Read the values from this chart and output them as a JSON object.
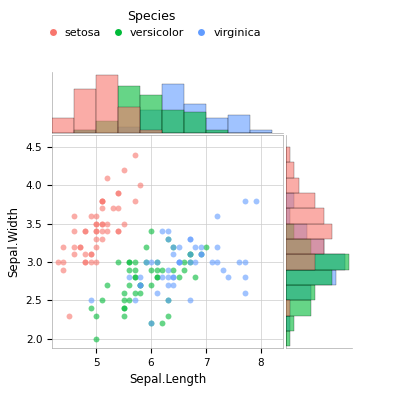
{
  "title": "Species",
  "species_colors": {
    "setosa": "#F8766D",
    "versicolor": "#00BA38",
    "virginica": "#619CFF"
  },
  "xlabel": "Sepal.Length",
  "ylabel": "Sepal.Width",
  "xlim": [
    4.2,
    8.4
  ],
  "ylim": [
    1.88,
    4.65
  ],
  "background_color": "#FFFFFF",
  "setosa_sl": [
    5.1,
    4.9,
    4.7,
    4.6,
    5.0,
    5.4,
    4.6,
    5.0,
    4.4,
    4.9,
    5.4,
    4.8,
    4.8,
    4.3,
    5.8,
    5.7,
    5.4,
    5.1,
    5.7,
    5.1,
    5.4,
    5.1,
    4.6,
    5.1,
    4.8,
    5.0,
    5.0,
    5.2,
    5.2,
    4.7,
    4.8,
    5.4,
    5.2,
    5.5,
    4.9,
    5.0,
    5.5,
    4.9,
    4.4,
    5.1,
    5.0,
    4.5,
    4.4,
    5.0,
    5.1,
    4.8,
    5.1,
    4.6,
    5.3,
    5.0
  ],
  "setosa_sw": [
    3.5,
    3.0,
    3.2,
    3.1,
    3.6,
    3.9,
    3.4,
    3.4,
    2.9,
    3.1,
    3.7,
    3.4,
    3.0,
    3.0,
    4.0,
    4.4,
    3.9,
    3.5,
    3.8,
    3.8,
    3.4,
    3.7,
    3.6,
    3.3,
    3.4,
    3.0,
    3.4,
    3.5,
    3.4,
    3.2,
    3.1,
    3.4,
    4.1,
    4.2,
    3.1,
    3.2,
    3.5,
    3.6,
    3.0,
    3.4,
    3.5,
    2.3,
    3.2,
    3.5,
    3.8,
    3.0,
    3.8,
    3.2,
    3.7,
    3.3
  ],
  "versicolor_sl": [
    7.0,
    6.4,
    6.9,
    5.5,
    6.5,
    5.7,
    6.3,
    4.9,
    6.6,
    5.2,
    5.0,
    5.9,
    6.0,
    6.1,
    5.6,
    6.7,
    5.6,
    5.8,
    6.2,
    5.6,
    5.9,
    6.1,
    6.3,
    6.1,
    6.4,
    6.6,
    6.8,
    6.7,
    6.0,
    5.7,
    5.5,
    5.5,
    5.8,
    6.0,
    5.4,
    6.0,
    6.7,
    6.3,
    5.6,
    5.5,
    5.5,
    6.1,
    5.8,
    5.0,
    5.6,
    5.7,
    5.7,
    6.2,
    5.1,
    5.7
  ],
  "versicolor_sw": [
    3.2,
    3.2,
    3.1,
    2.3,
    2.8,
    2.8,
    3.3,
    2.4,
    2.9,
    2.7,
    2.0,
    3.0,
    2.2,
    2.9,
    2.9,
    3.1,
    3.0,
    2.7,
    2.2,
    2.5,
    3.2,
    2.8,
    2.5,
    2.8,
    2.9,
    3.0,
    2.8,
    3.0,
    2.9,
    2.6,
    2.4,
    2.4,
    2.7,
    2.7,
    3.0,
    3.4,
    3.1,
    2.3,
    3.0,
    2.5,
    2.6,
    3.0,
    2.6,
    2.3,
    2.7,
    3.0,
    2.9,
    2.9,
    2.5,
    2.8
  ],
  "virginica_sl": [
    6.3,
    5.8,
    7.1,
    6.3,
    6.5,
    7.6,
    4.9,
    7.3,
    6.7,
    7.2,
    6.5,
    6.4,
    6.8,
    5.7,
    5.8,
    6.4,
    6.5,
    7.7,
    7.7,
    6.0,
    6.9,
    5.6,
    7.7,
    6.3,
    6.7,
    7.2,
    6.2,
    6.1,
    6.4,
    7.2,
    7.4,
    7.9,
    6.4,
    6.3,
    6.1,
    7.7,
    6.3,
    6.4,
    6.0,
    6.9,
    6.7,
    6.9,
    5.8,
    6.8,
    6.7,
    6.7,
    6.3,
    6.5,
    6.2,
    5.9
  ],
  "virginica_sw": [
    3.3,
    2.7,
    3.0,
    2.9,
    3.0,
    3.0,
    2.5,
    2.9,
    2.5,
    3.6,
    3.2,
    2.7,
    3.0,
    2.5,
    2.8,
    3.2,
    3.0,
    3.8,
    2.6,
    2.2,
    3.2,
    2.8,
    2.8,
    2.7,
    3.3,
    3.2,
    2.8,
    3.0,
    2.8,
    3.0,
    2.8,
    3.8,
    2.8,
    2.8,
    2.6,
    3.0,
    3.4,
    3.1,
    3.0,
    3.1,
    3.1,
    3.1,
    2.7,
    3.2,
    3.3,
    3.0,
    2.5,
    3.0,
    3.4,
    3.0
  ],
  "hist_bins_sl": [
    4.2,
    4.6,
    5.0,
    5.4,
    5.8,
    6.2,
    6.6,
    7.0,
    7.4,
    7.8,
    8.2
  ],
  "hist_bins_sw": [
    1.9,
    2.1,
    2.3,
    2.5,
    2.7,
    2.9,
    3.1,
    3.3,
    3.5,
    3.7,
    3.9,
    4.1,
    4.3,
    4.5
  ],
  "alpha": 0.6,
  "marker_size": 18
}
